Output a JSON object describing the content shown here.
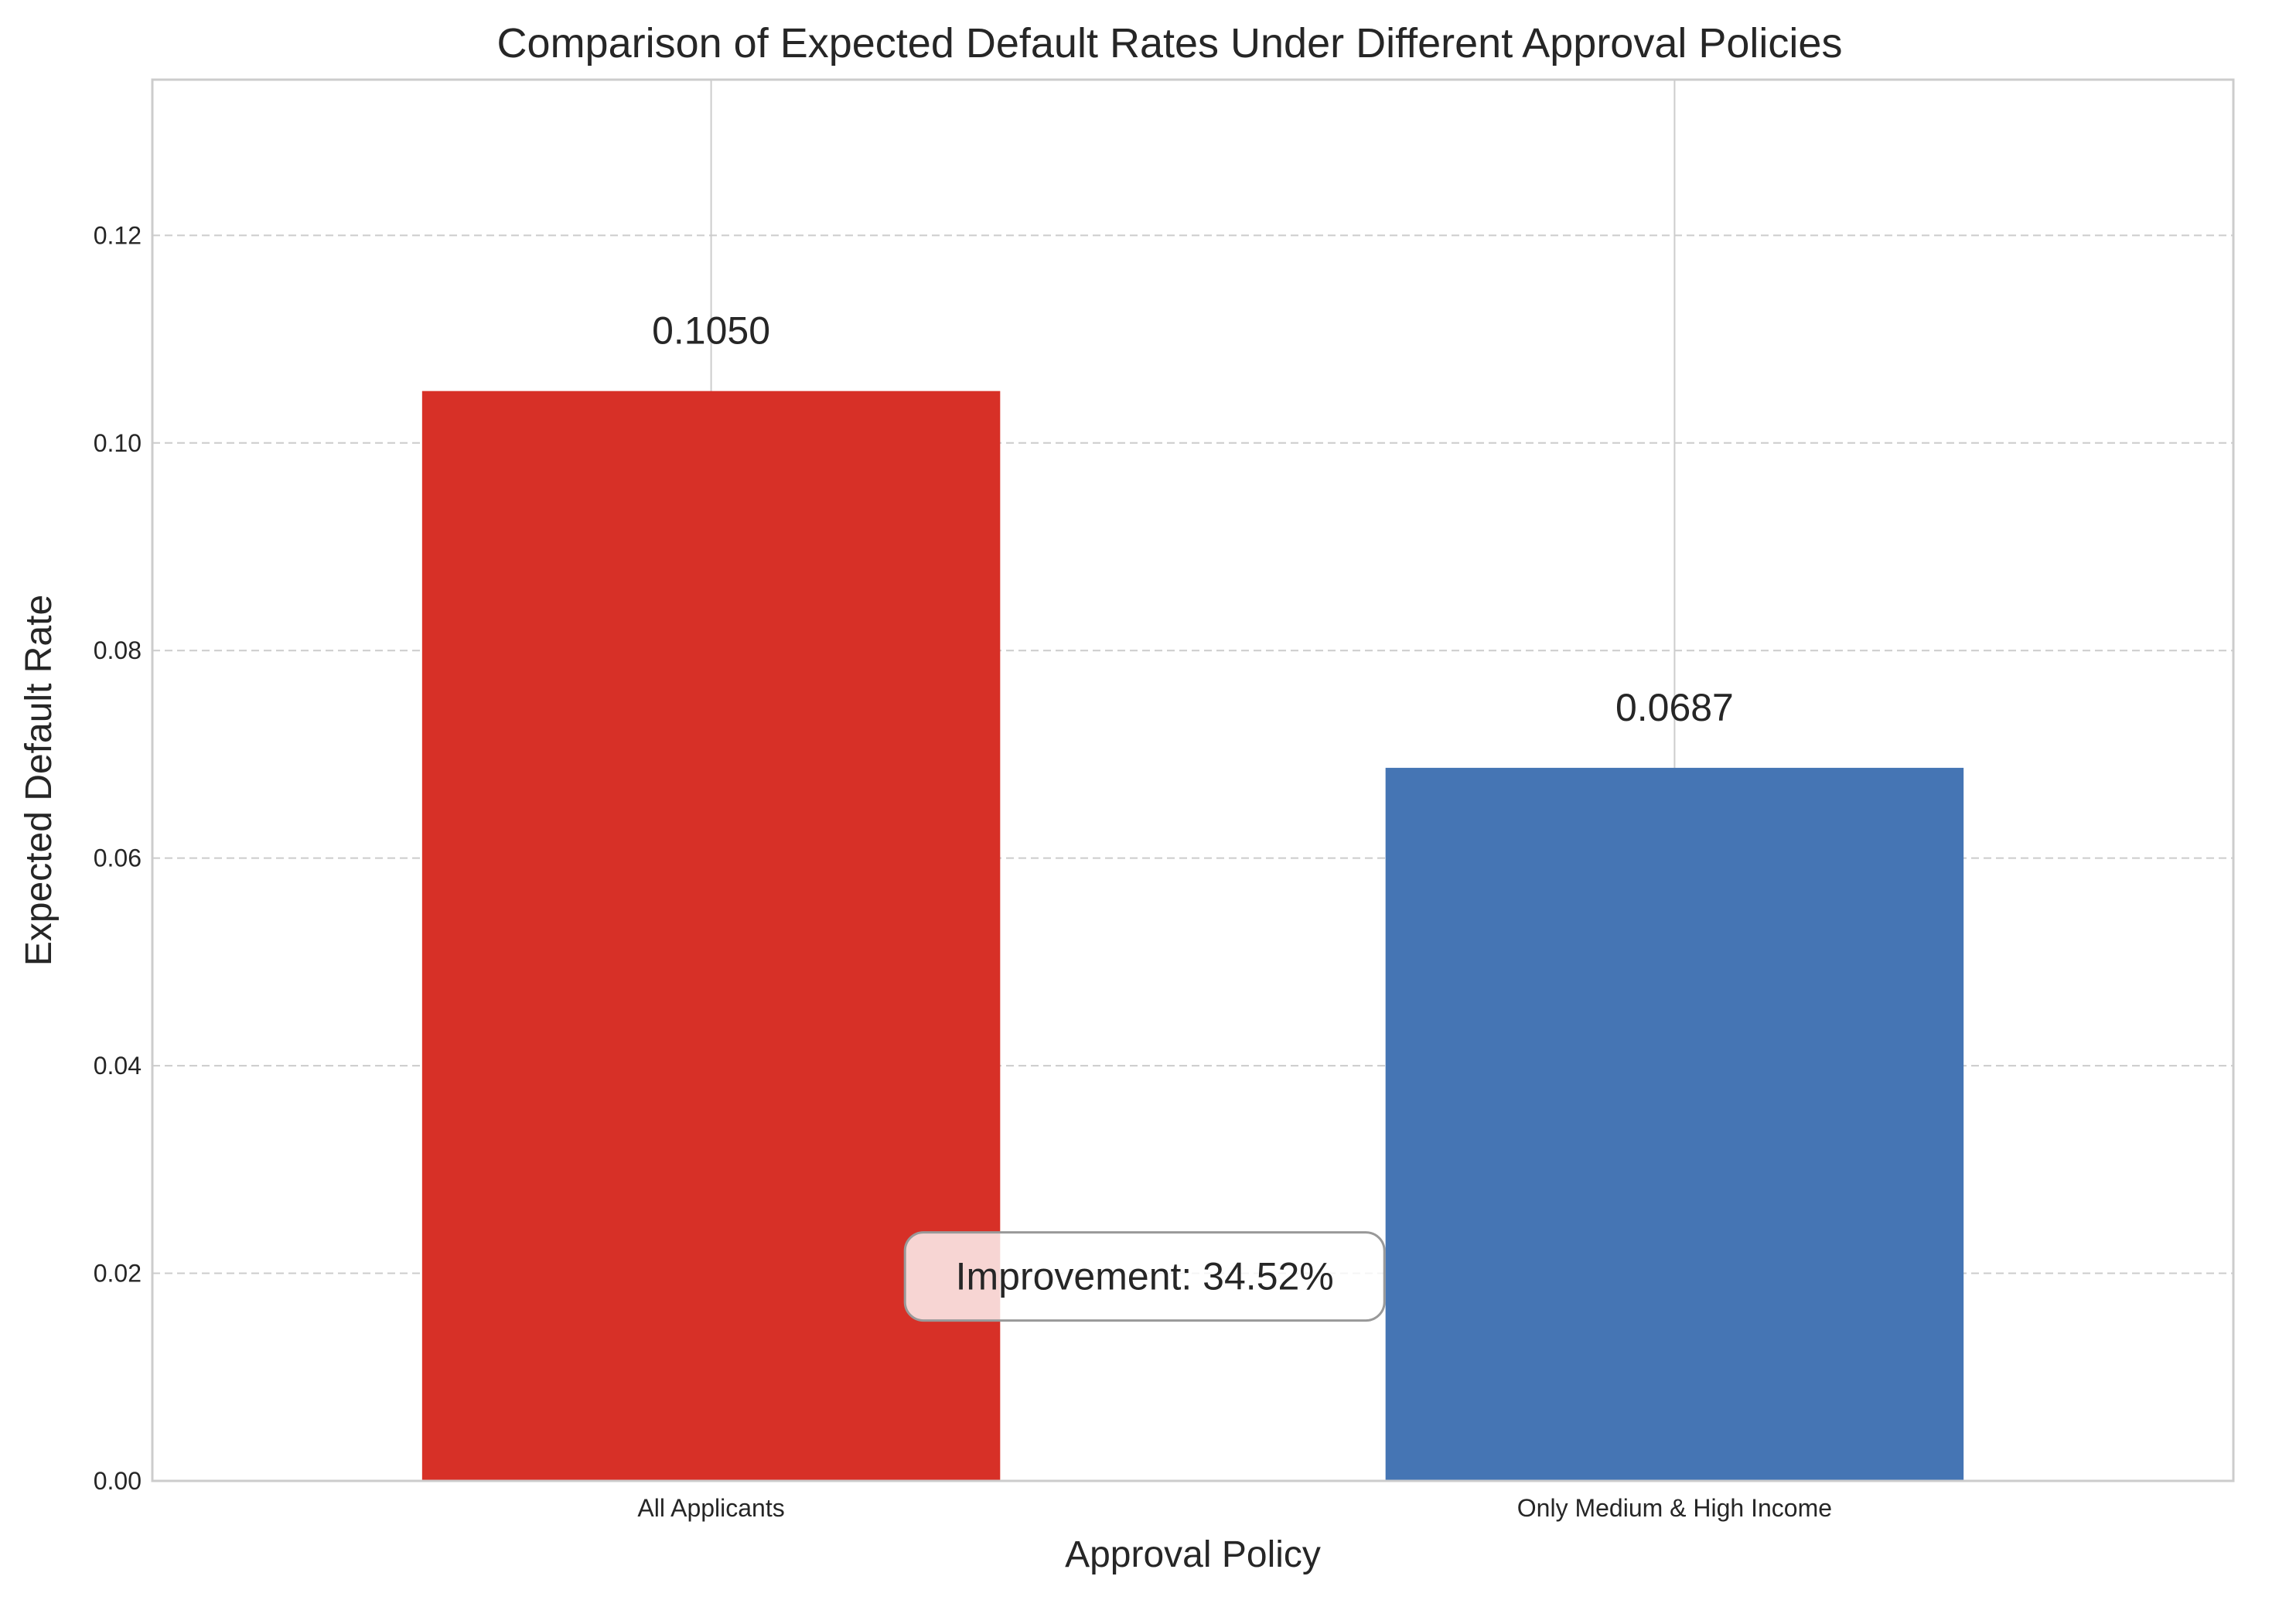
{
  "chart_data": {
    "type": "bar",
    "title": "Comparison of Expected Default Rates Under Different Approval Policies",
    "xlabel": "Approval Policy",
    "ylabel": "Expected Default Rate",
    "categories": [
      "All Applicants",
      "Only Medium & High Income"
    ],
    "values": [
      0.105,
      0.0687
    ],
    "data_labels": [
      "0.1050",
      "0.0687"
    ],
    "colors": [
      "#d73027",
      "#4575b4"
    ],
    "ylim": [
      0,
      0.135
    ],
    "yticks": [
      0.0,
      0.02,
      0.04,
      0.06,
      0.08,
      0.1,
      0.12
    ],
    "ytick_labels": [
      "0.00",
      "0.02",
      "0.04",
      "0.06",
      "0.08",
      "0.10",
      "0.12"
    ],
    "grid": "horizontal dashed, vertical solid at categories",
    "annotation": {
      "text": "Improvement: 34.52%",
      "x_between_categories": 0.45,
      "y": 0.0197,
      "box_fill": "#ffffff",
      "box_edge": "#999999"
    }
  }
}
